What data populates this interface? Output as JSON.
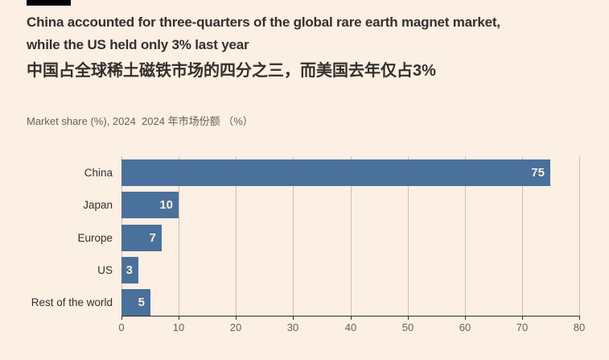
{
  "header": {
    "title_lines": [
      "China accounted for three-quarters of the global rare earth magnet market,",
      "while the US held only 3% last year"
    ],
    "title_zh": "中国占全球稀土磁铁市场的四分之三，而美国去年仅占3%",
    "subtitle": "Market share (%), 2024  2024 年市场份额 （%）"
  },
  "colors": {
    "background": "#FCEFE3",
    "accent_bar": "#000000",
    "bar": "#49719B",
    "axis": "#33302E",
    "gridline": "rgba(120,100,90,0.35)",
    "value_label": "#F7EEE1",
    "text_dark": "#33302E",
    "text_muted": "#66605B"
  },
  "chart_data": {
    "type": "bar",
    "orientation": "horizontal",
    "title": "Market share (%), 2024",
    "xlabel": "",
    "ylabel": "",
    "categories": [
      "China",
      "Japan",
      "Europe",
      "US",
      "Rest of the world"
    ],
    "values": [
      75,
      10,
      7,
      3,
      5
    ],
    "xlim": [
      0,
      80
    ],
    "xticks": [
      0,
      10,
      20,
      30,
      40,
      50,
      60,
      70,
      80
    ],
    "grid": true,
    "legend": false,
    "value_labels_inside_bars": true
  }
}
